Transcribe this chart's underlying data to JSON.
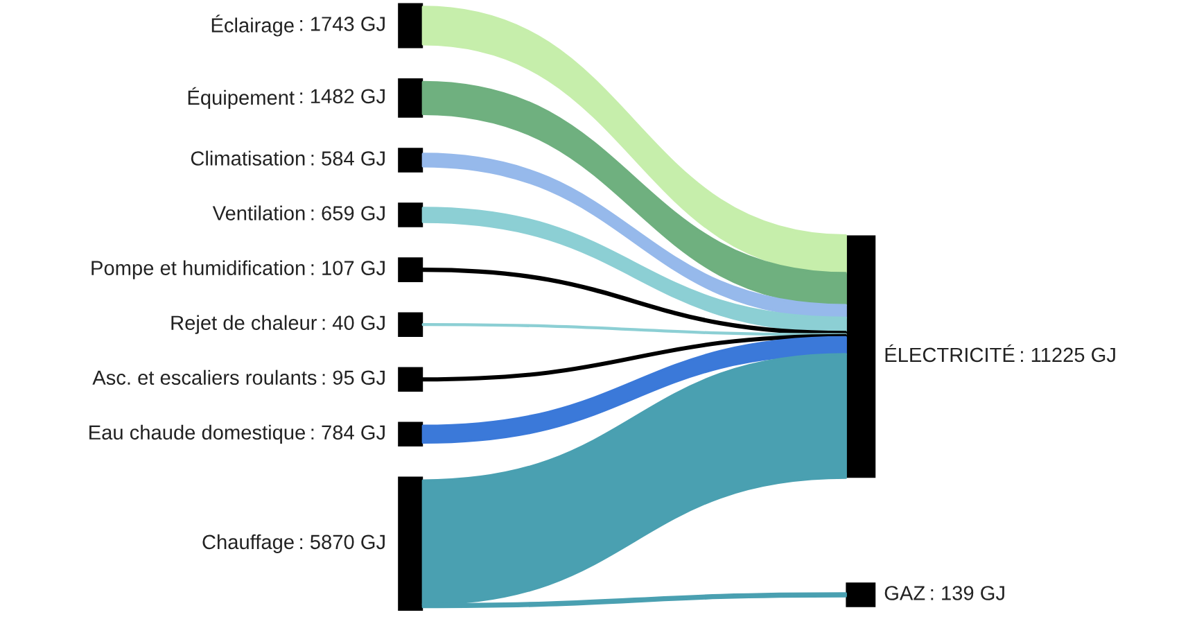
{
  "chart_data": {
    "type": "other",
    "categories": [
      "Éclairage",
      "Équipement",
      "Climatisation",
      "Ventilation",
      "Pompe et humidification",
      "Rejet de chaleur",
      "Asc. et escaliers roulants",
      "Eau chaude domestique",
      "Chauffage",
      "ÉLECTRICITÉ",
      "GAZ"
    ],
    "series": [
      {
        "color": "#000000",
        "values": [
          1743,
          1482,
          584,
          659,
          107,
          40,
          95,
          784,
          5870,
          null,
          null
        ],
        "value_labels": [
          ": 1743 GJ",
          ": 1482 GJ",
          ": 584 GJ",
          ": 659 GJ",
          ": 107 GJ",
          ": 40 GJ",
          ": 95 GJ",
          ": 784 GJ",
          ": 5870 GJ",
          null,
          null
        ],
        "colors": [
          "#c6eeab",
          "#6fb07f",
          "#96b9eb",
          "#8ccfd4",
          "#000000",
          "#8ccfd4",
          "#000000",
          "#3b79d9",
          "#4aa0b1",
          null,
          null
        ]
      },
      {
        "color": "#000000",
        "values": [
          null,
          null,
          null,
          null,
          null,
          null,
          null,
          null,
          null,
          11225,
          139
        ],
        "value_labels": [
          null,
          null,
          null,
          null,
          null,
          null,
          null,
          null,
          null,
          ": 11225 GJ",
          ": 139 GJ"
        ]
      }
    ]
  }
}
